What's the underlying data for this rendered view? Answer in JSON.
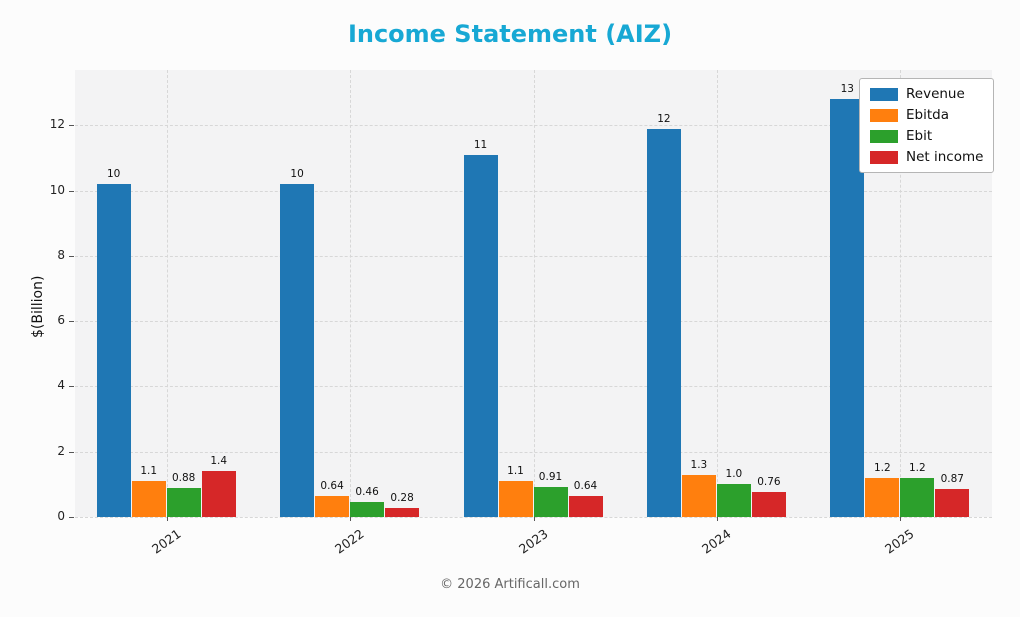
{
  "chart_data": {
    "type": "bar",
    "title": "Income Statement (AIZ)",
    "title_color": "#17a8d4",
    "xlabel": "",
    "ylabel": "$(Billion)",
    "footer": "© 2026 Artificall.com",
    "categories": [
      "2021",
      "2022",
      "2023",
      "2024",
      "2025"
    ],
    "series": [
      {
        "name": "Revenue",
        "color": "#1f77b4",
        "values": [
          10.2,
          10.2,
          11.1,
          11.9,
          12.8
        ],
        "labels": [
          "10",
          "10",
          "11",
          "12",
          "13"
        ]
      },
      {
        "name": "Ebitda",
        "color": "#ff7f0e",
        "values": [
          1.1,
          0.64,
          1.1,
          1.3,
          1.2
        ],
        "labels": [
          "1.1",
          "0.64",
          "1.1",
          "1.3",
          "1.2"
        ]
      },
      {
        "name": "Ebit",
        "color": "#2ca02c",
        "values": [
          0.88,
          0.46,
          0.91,
          1.0,
          1.2
        ],
        "labels": [
          "0.88",
          "0.46",
          "0.91",
          "1.0",
          "1.2"
        ]
      },
      {
        "name": "Net income",
        "color": "#d62728",
        "values": [
          1.4,
          0.28,
          0.64,
          0.76,
          0.87
        ],
        "labels": [
          "1.4",
          "0.28",
          "0.64",
          "0.76",
          "0.87"
        ]
      }
    ],
    "ylim": [
      0,
      13.7
    ],
    "yticks": [
      0,
      2,
      4,
      6,
      8,
      10,
      12
    ],
    "grid": true,
    "legend_position": "top-right"
  }
}
